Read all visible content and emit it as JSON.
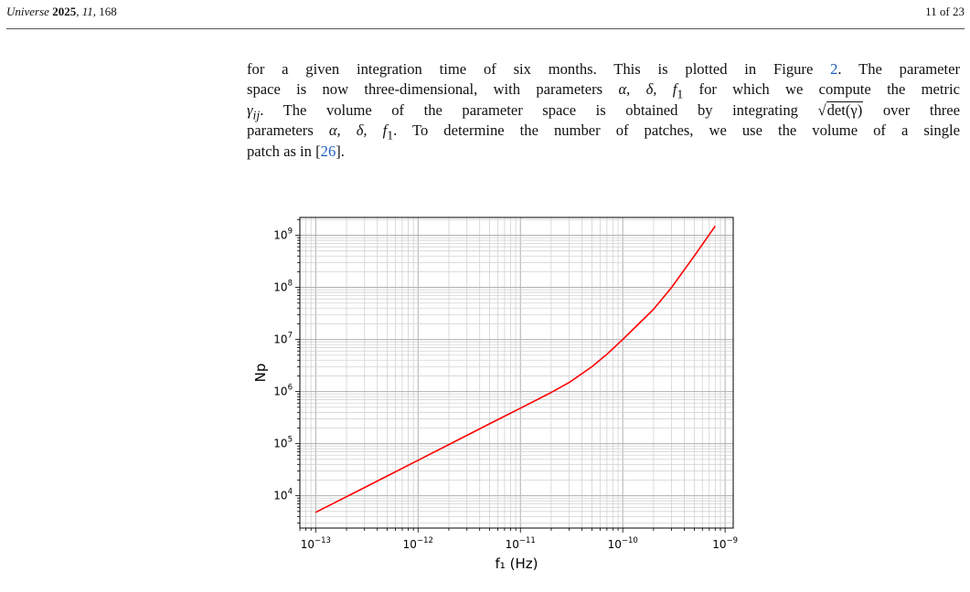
{
  "header": {
    "journal": "Universe",
    "year": "2025",
    "volume": "11",
    "article": "168",
    "page": "11 of 23"
  },
  "paragraph": {
    "l1a": "for a given integration time of six months. This is plotted in Figure ",
    "l1_link": "2",
    "l1b": ". The parameter",
    "l2a": "space is now three-dimensional, with parameters ",
    "l2_params": "α, δ, f",
    "l2_sub": "1",
    "l2b": " for which we compute the metric",
    "l3_metric": "γ",
    "l3_metric_sub": "ij",
    "l3a": ". The volume of the parameter space is obtained by integrating ",
    "l3_sqrt": "det(γ)",
    "l3b": " over three",
    "l4a": "parameters ",
    "l4_params": "α, δ, f",
    "l4_sub": "1",
    "l4b": ". To determine the number of patches, we use the volume of a single",
    "l5a": "patch as in [",
    "l5_cite": "26",
    "l5b": "]."
  },
  "chart_data": {
    "type": "line",
    "x_scale": "log",
    "y_scale": "log",
    "xlim": [
      7e-14,
      1.2e-09
    ],
    "ylim": [
      2400,
      2200000000.0
    ],
    "grid": "on (major and minor)",
    "xlabel": "f₁ (Hz)",
    "ylabel": "Np",
    "x_ticks": [
      1e-13,
      1e-12,
      1e-11,
      1e-10,
      1e-09
    ],
    "x_tick_exponents": [
      "−13",
      "−12",
      "−11",
      "−10",
      "−9"
    ],
    "y_ticks": [
      10000.0,
      100000.0,
      1000000.0,
      10000000.0,
      100000000.0,
      1000000000.0
    ],
    "y_tick_exponents": [
      "4",
      "5",
      "6",
      "7",
      "8",
      "9"
    ],
    "tick_base": "10",
    "series": [
      {
        "color": "#ff0000",
        "x": [
          1e-13,
          2e-13,
          5e-13,
          1e-12,
          2e-12,
          5e-12,
          1e-11,
          2e-11,
          3e-11,
          5e-11,
          7e-11,
          1e-10,
          2e-10,
          3e-10,
          5e-10,
          8e-10
        ],
        "y": [
          4800,
          9600,
          24000,
          48000,
          96000,
          240000,
          480000,
          960000,
          1500000,
          3000000,
          5200000,
          10000000,
          38000000,
          100000000,
          400000000,
          1500000000
        ]
      }
    ]
  }
}
